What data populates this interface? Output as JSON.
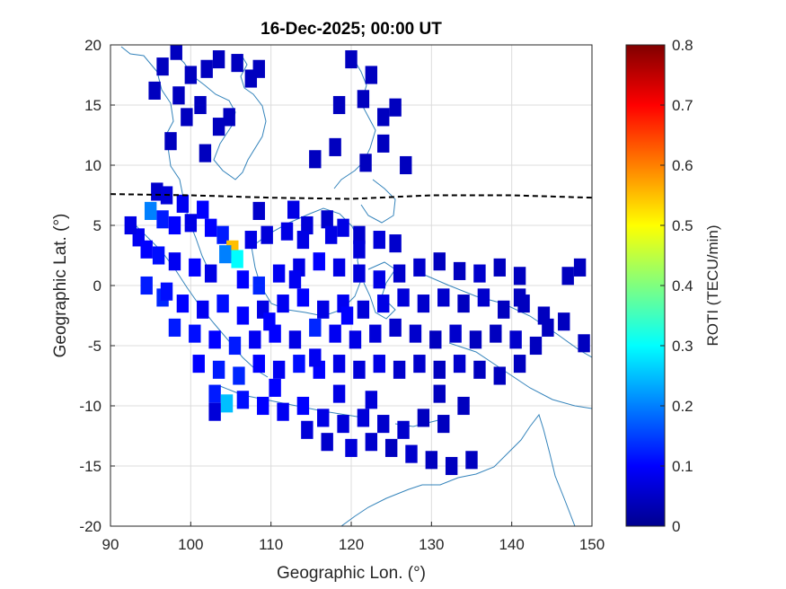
{
  "chart_data": {
    "type": "heatmap",
    "title": "16-Dec-2025; 00:00 UT",
    "xlabel": "Geographic Lon. (°)",
    "ylabel": "Geographic Lat. (°)",
    "xlim": [
      90,
      150
    ],
    "ylim": [
      -20,
      20
    ],
    "xticks": [
      "90",
      "100",
      "110",
      "120",
      "130",
      "140",
      "150"
    ],
    "yticks": [
      "20",
      "15",
      "10",
      "5",
      "0",
      "-5",
      "-10",
      "-15",
      "-20"
    ],
    "grid": true,
    "colorbar": {
      "label": "ROTI (TECU/min)",
      "range": [
        0,
        0.8
      ],
      "ticks": [
        "0.8",
        "0.7",
        "0.6",
        "0.5",
        "0.4",
        "0.3",
        "0.2",
        "0.1",
        "0"
      ],
      "colormap": "jet"
    },
    "equator_line": {
      "style": "dashed",
      "color": "#000000",
      "points": [
        [
          90,
          7.6
        ],
        [
          100,
          7.5
        ],
        [
          110,
          7.3
        ],
        [
          120,
          7.2
        ],
        [
          130,
          7.5
        ],
        [
          140,
          7.5
        ],
        [
          150,
          7.3
        ]
      ]
    },
    "roti_cells": [
      [
        95.8,
        7.8,
        0.06
      ],
      [
        97,
        7.5,
        0.07
      ],
      [
        99,
        6.8,
        0.09
      ],
      [
        101.5,
        6.3,
        0.1
      ],
      [
        95,
        6.2,
        0.2
      ],
      [
        96.5,
        5.5,
        0.12
      ],
      [
        98,
        5,
        0.1
      ],
      [
        100,
        5.2,
        0.08
      ],
      [
        102.5,
        4.8,
        0.1
      ],
      [
        104,
        4.2,
        0.12
      ],
      [
        105.2,
        3,
        0.55
      ],
      [
        105.8,
        2.2,
        0.3
      ],
      [
        104.3,
        2.6,
        0.2
      ],
      [
        107.5,
        3.8,
        0.08
      ],
      [
        109.5,
        4.2,
        0.07
      ],
      [
        112,
        4.5,
        0.08
      ],
      [
        114.5,
        5,
        0.07
      ],
      [
        117,
        5.5,
        0.06
      ],
      [
        119,
        4.8,
        0.08
      ],
      [
        121,
        4.2,
        0.06
      ],
      [
        123.5,
        3.8,
        0.07
      ],
      [
        125.5,
        3.5,
        0.06
      ],
      [
        93.5,
        4,
        0.09
      ],
      [
        94.5,
        3,
        0.1
      ],
      [
        96,
        2.5,
        0.11
      ],
      [
        98,
        2,
        0.09
      ],
      [
        100.5,
        1.5,
        0.1
      ],
      [
        102.5,
        1,
        0.08
      ],
      [
        106.5,
        0.5,
        0.1
      ],
      [
        108.5,
        0,
        0.13
      ],
      [
        111,
        1,
        0.09
      ],
      [
        113.5,
        1.5,
        0.08
      ],
      [
        116,
        2,
        0.1
      ],
      [
        118.5,
        1.5,
        0.08
      ],
      [
        121,
        1,
        0.07
      ],
      [
        123.5,
        0.5,
        0.08
      ],
      [
        126,
        1,
        0.06
      ],
      [
        128.5,
        1.5,
        0.06
      ],
      [
        131,
        2,
        0.05
      ],
      [
        133.5,
        1.2,
        0.05
      ],
      [
        136,
        1,
        0.06
      ],
      [
        138.5,
        1.5,
        0.05
      ],
      [
        141,
        0.8,
        0.05
      ],
      [
        94.5,
        0,
        0.12
      ],
      [
        96.5,
        -1,
        0.13
      ],
      [
        99,
        -1.5,
        0.1
      ],
      [
        101.5,
        -2,
        0.09
      ],
      [
        104,
        -1.5,
        0.11
      ],
      [
        106.5,
        -2.5,
        0.1
      ],
      [
        109,
        -2,
        0.08
      ],
      [
        111.5,
        -1.5,
        0.09
      ],
      [
        114,
        -1,
        0.1
      ],
      [
        116.5,
        -2,
        0.08
      ],
      [
        119,
        -1.5,
        0.09
      ],
      [
        121.5,
        -2,
        0.07
      ],
      [
        124,
        -1.5,
        0.08
      ],
      [
        126.5,
        -1,
        0.07
      ],
      [
        129,
        -1.5,
        0.06
      ],
      [
        131.5,
        -1,
        0.06
      ],
      [
        134,
        -1.5,
        0.05
      ],
      [
        136.5,
        -1,
        0.06
      ],
      [
        139,
        -2,
        0.05
      ],
      [
        141.5,
        -1.5,
        0.05
      ],
      [
        98,
        -3.5,
        0.12
      ],
      [
        100.5,
        -4,
        0.11
      ],
      [
        103,
        -4.5,
        0.1
      ],
      [
        105.5,
        -5,
        0.12
      ],
      [
        108,
        -4.5,
        0.09
      ],
      [
        110.5,
        -4,
        0.1
      ],
      [
        113,
        -4.5,
        0.08
      ],
      [
        115.5,
        -3.5,
        0.13
      ],
      [
        118,
        -4,
        0.09
      ],
      [
        120.5,
        -4.5,
        0.08
      ],
      [
        123,
        -4,
        0.07
      ],
      [
        125.5,
        -3.5,
        0.06
      ],
      [
        128,
        -4,
        0.06
      ],
      [
        130.5,
        -4.5,
        0.05
      ],
      [
        133,
        -4,
        0.06
      ],
      [
        135.5,
        -4.5,
        0.05
      ],
      [
        138,
        -4,
        0.05
      ],
      [
        140.5,
        -4.5,
        0.06
      ],
      [
        143,
        -5,
        0.05
      ],
      [
        101,
        -6.5,
        0.1
      ],
      [
        103.5,
        -7,
        0.12
      ],
      [
        106,
        -7.5,
        0.13
      ],
      [
        108.5,
        -6.5,
        0.1
      ],
      [
        111,
        -7,
        0.09
      ],
      [
        113.5,
        -6.5,
        0.11
      ],
      [
        116,
        -7,
        0.1
      ],
      [
        118.5,
        -6.5,
        0.08
      ],
      [
        121,
        -7,
        0.07
      ],
      [
        123.5,
        -6.5,
        0.08
      ],
      [
        126,
        -7,
        0.06
      ],
      [
        128.5,
        -6.5,
        0.06
      ],
      [
        131,
        -7,
        0.05
      ],
      [
        133.5,
        -6.5,
        0.06
      ],
      [
        136,
        -7,
        0.05
      ],
      [
        138.5,
        -7.5,
        0.05
      ],
      [
        141,
        -6.5,
        0.05
      ],
      [
        103,
        -9,
        0.12
      ],
      [
        104.5,
        -9.8,
        0.25
      ],
      [
        106.5,
        -9.5,
        0.11
      ],
      [
        109,
        -10,
        0.1
      ],
      [
        111.5,
        -10.5,
        0.09
      ],
      [
        114,
        -10,
        0.1
      ],
      [
        116.5,
        -11,
        0.08
      ],
      [
        119,
        -11.5,
        0.07
      ],
      [
        121.5,
        -11,
        0.07
      ],
      [
        124,
        -11.5,
        0.06
      ],
      [
        126.5,
        -12,
        0.06
      ],
      [
        129,
        -11,
        0.05
      ],
      [
        131.5,
        -11.5,
        0.05
      ],
      [
        134,
        -10,
        0.05
      ],
      [
        103,
        -10.5,
        0.07
      ],
      [
        114.5,
        -12,
        0.07
      ],
      [
        117,
        -13,
        0.06
      ],
      [
        120,
        -13.5,
        0.07
      ],
      [
        122.5,
        -13,
        0.06
      ],
      [
        125,
        -13.5,
        0.05
      ],
      [
        127.5,
        -14,
        0.06
      ],
      [
        130,
        -14.5,
        0.05
      ],
      [
        132.5,
        -15,
        0.05
      ],
      [
        135,
        -14.5,
        0.05
      ],
      [
        92.5,
        5,
        0.08
      ],
      [
        97,
        -0.5,
        0.11
      ],
      [
        119.5,
        -2.5,
        0.1
      ],
      [
        131,
        -9,
        0.05
      ],
      [
        144,
        -2.5,
        0.05
      ],
      [
        146.5,
        -3,
        0.05
      ],
      [
        148.5,
        1.5,
        0.05
      ],
      [
        149,
        -4.8,
        0.05
      ],
      [
        147,
        0.8,
        0.05
      ],
      [
        144.5,
        -3.5,
        0.05
      ],
      [
        141,
        -1,
        0.05
      ],
      [
        112.8,
        6.3,
        0.08
      ],
      [
        121,
        3,
        0.07
      ],
      [
        117.5,
        4.2,
        0.08
      ],
      [
        114,
        3.8,
        0.08
      ],
      [
        113,
        0.5,
        0.09
      ],
      [
        109.8,
        -3,
        0.1
      ],
      [
        115.5,
        -6,
        0.09
      ],
      [
        110.5,
        -8.5,
        0.1
      ],
      [
        118.5,
        -9,
        0.08
      ],
      [
        122.5,
        -9.5,
        0.07
      ],
      [
        98.2,
        19.5,
        0.05
      ],
      [
        96.5,
        18.2,
        0.05
      ],
      [
        100,
        17.5,
        0.05
      ],
      [
        102,
        18,
        0.05
      ],
      [
        103.5,
        18.8,
        0.05
      ],
      [
        105.8,
        18.5,
        0.05
      ],
      [
        107.5,
        17.2,
        0.05
      ],
      [
        108.5,
        18,
        0.05
      ],
      [
        120,
        18.8,
        0.05
      ],
      [
        122.5,
        17.5,
        0.05
      ],
      [
        121.5,
        15.5,
        0.05
      ],
      [
        118.5,
        15,
        0.05
      ],
      [
        124,
        14,
        0.05
      ],
      [
        125.5,
        14.8,
        0.05
      ],
      [
        99.5,
        14,
        0.05
      ],
      [
        103.5,
        13.2,
        0.05
      ],
      [
        104.8,
        14,
        0.05
      ],
      [
        101.2,
        15,
        0.05
      ],
      [
        95.5,
        16.2,
        0.05
      ],
      [
        97.5,
        12,
        0.05
      ],
      [
        118,
        11.5,
        0.05
      ],
      [
        115.5,
        10.5,
        0.05
      ],
      [
        121.8,
        10.2,
        0.05
      ],
      [
        124,
        11.8,
        0.05
      ],
      [
        101.8,
        11,
        0.05
      ],
      [
        126.8,
        10,
        0.05
      ],
      [
        108.5,
        6.2,
        0.06
      ],
      [
        98.5,
        15.8,
        0.05
      ]
    ]
  }
}
